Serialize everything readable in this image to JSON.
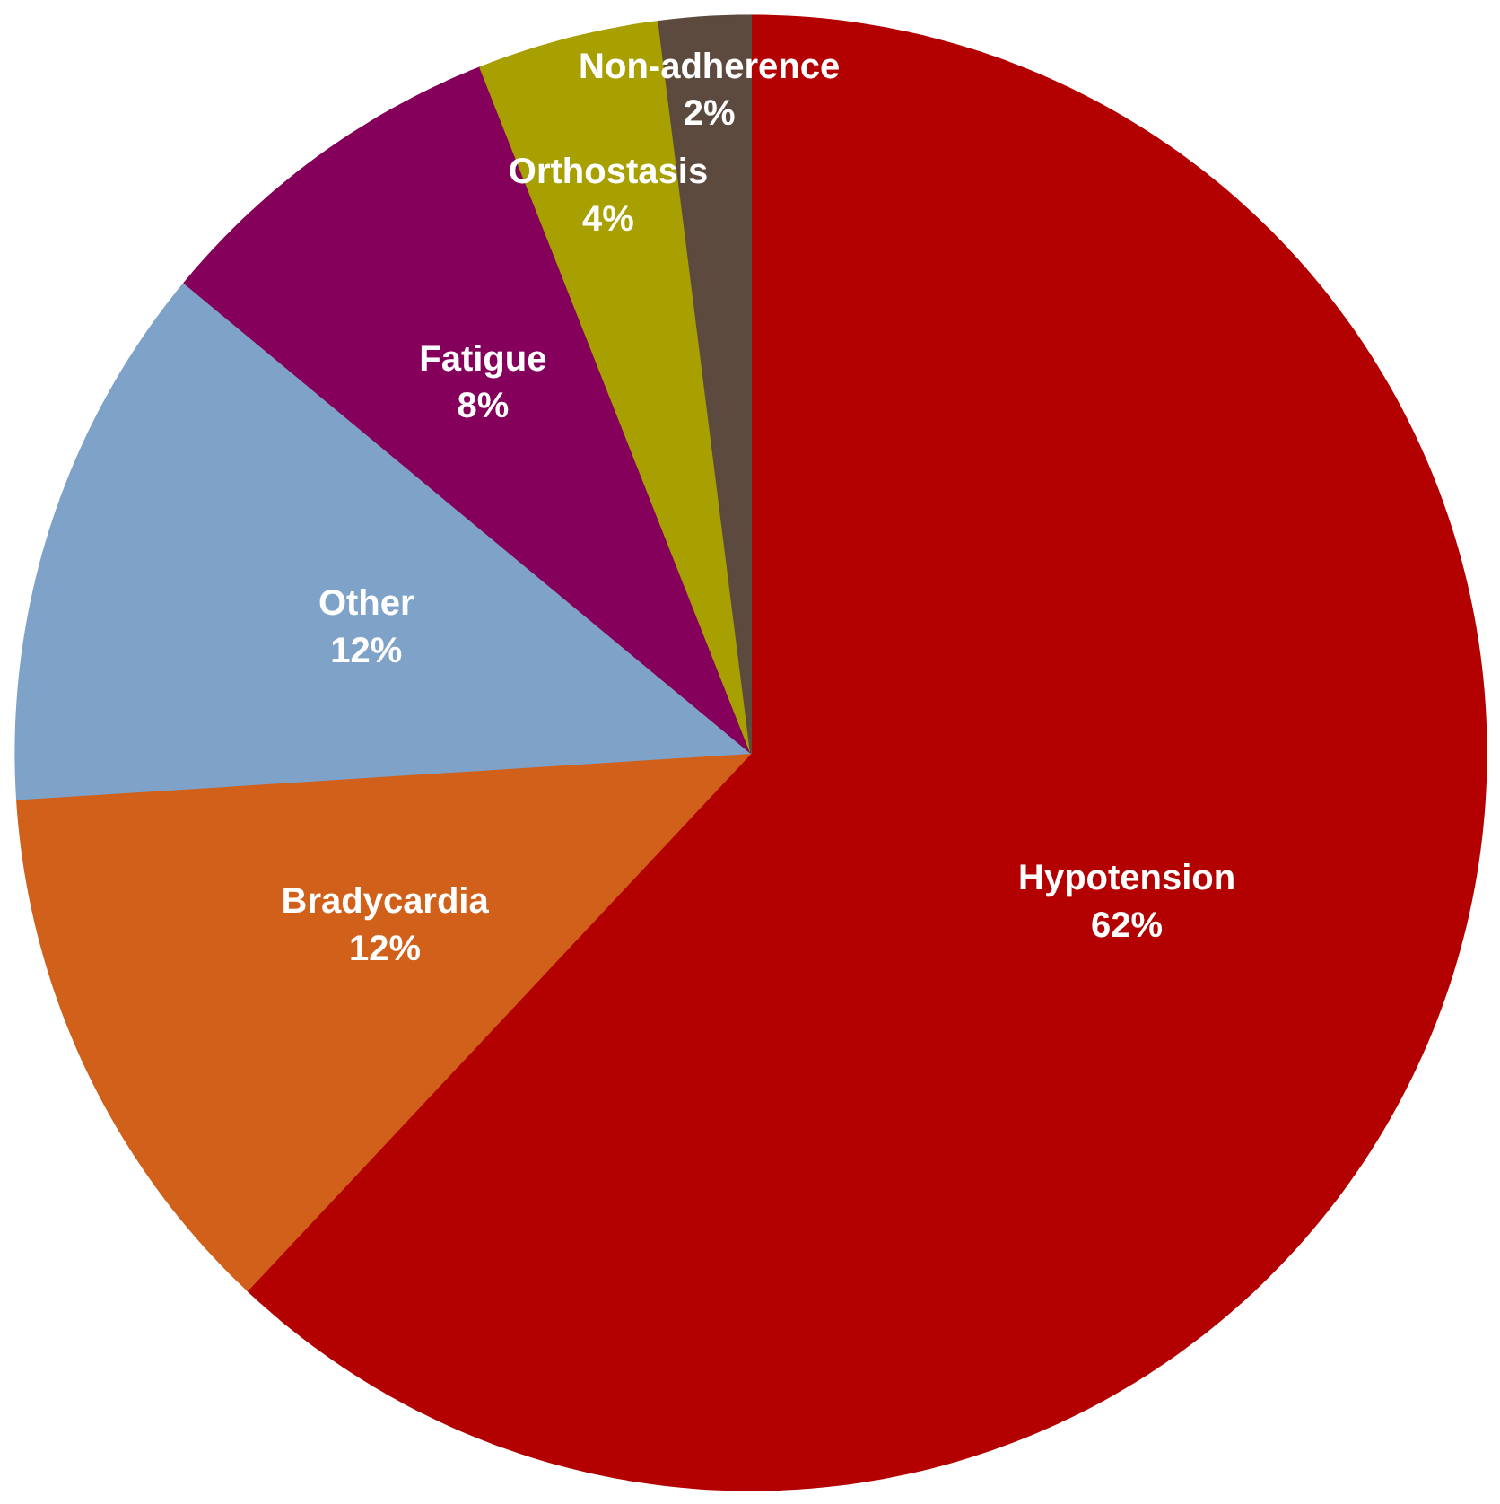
{
  "chart_data": {
    "type": "pie",
    "categories": [
      "Hypotension",
      "Bradycardia",
      "Other",
      "Fatigue",
      "Orthostasis",
      "Non-adherence"
    ],
    "values": [
      62,
      12,
      12,
      8,
      4,
      2
    ],
    "value_labels": [
      "62%",
      "12%",
      "12%",
      "8%",
      "4%",
      "2%"
    ],
    "colors": [
      "#b30000",
      "#d0601a",
      "#7fa2c8",
      "#84005a",
      "#a89f00",
      "#5c4a3e"
    ]
  }
}
